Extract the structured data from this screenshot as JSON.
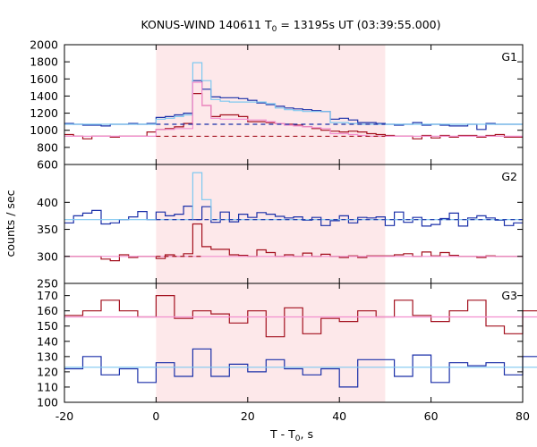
{
  "chart_data": {
    "type": "line",
    "title": "KONUS-WIND 140611 T",
    "title_sub": "0",
    "title_rest": " = 13195s UT (03:39:55.000)",
    "xlabel": "T - T",
    "xlabel_sub": "0",
    "xlabel_rest": ", s",
    "ylabel": "counts / sec",
    "xlim": [
      -20,
      80
    ],
    "xticks": [
      -20,
      0,
      20,
      40,
      60,
      80
    ],
    "shaded_interval": [
      0,
      50
    ],
    "colors": {
      "shade": "#fde8ea",
      "blue_data": "#1a2fa8",
      "blue_model": "#7ec8f0",
      "red_data": "#a3101e",
      "red_model": "#f28fd0"
    },
    "panels": [
      {
        "label": "G1",
        "ylim": [
          600,
          2000
        ],
        "yticks": [
          600,
          800,
          1000,
          1200,
          1400,
          1600,
          1800,
          2000
        ],
        "series": [
          {
            "color": "blue_data",
            "style": "step",
            "x0": -20,
            "dx": 2,
            "values": [
              1080,
              1070,
              1060,
              1060,
              1050,
              1070,
              1070,
              1080,
              1070,
              1080,
              1150,
              1160,
              1180,
              1200,
              1580,
              1480,
              1390,
              1380,
              1380,
              1370,
              1350,
              1320,
              1300,
              1280,
              1260,
              1250,
              1240,
              1230,
              1220,
              1130,
              1140,
              1120,
              1090,
              1090,
              1080,
              1070,
              1060,
              1070,
              1090,
              1060,
              1070,
              1060,
              1050,
              1050,
              1070,
              1010,
              1080,
              1070,
              1070,
              1070
            ]
          },
          {
            "color": "blue_model",
            "style": "step",
            "x0": -20,
            "dx": 2,
            "values": [
              1070,
              1070,
              1070,
              1070,
              1070,
              1070,
              1070,
              1070,
              1070,
              1070,
              1130,
              1140,
              1160,
              1180,
              1790,
              1580,
              1360,
              1340,
              1330,
              1330,
              1330,
              1330,
              1310,
              1260,
              1240,
              1230,
              1220,
              1220,
              1220,
              1090,
              1090,
              1080,
              1070,
              1070,
              1070,
              1070,
              1070,
              1070,
              1070,
              1070,
              1070,
              1070,
              1070,
              1070,
              1070,
              1070,
              1070,
              1070,
              1070,
              1070
            ]
          },
          {
            "color": "red_data",
            "style": "step",
            "x0": -20,
            "dx": 2,
            "values": [
              950,
              930,
              900,
              930,
              930,
              920,
              930,
              930,
              930,
              980,
              1010,
              1020,
              1040,
              1080,
              1430,
              1290,
              1160,
              1180,
              1180,
              1160,
              1100,
              1100,
              1090,
              1080,
              1070,
              1060,
              1040,
              1020,
              1000,
              990,
              980,
              990,
              980,
              960,
              950,
              940,
              930,
              930,
              900,
              940,
              910,
              940,
              920,
              940,
              940,
              920,
              940,
              950,
              920,
              920
            ]
          },
          {
            "color": "red_model",
            "style": "step",
            "x0": -20,
            "dx": 2,
            "values": [
              930,
              930,
              930,
              930,
              930,
              930,
              930,
              930,
              930,
              930,
              1010,
              1010,
              1020,
              1020,
              1560,
              1290,
              1140,
              1130,
              1130,
              1130,
              1120,
              1120,
              1100,
              1080,
              1060,
              1050,
              1040,
              1030,
              1020,
              960,
              960,
              950,
              940,
              930,
              930,
              930,
              930,
              930,
              930,
              930,
              930,
              930,
              930,
              930,
              930,
              930,
              930,
              930,
              930,
              930
            ]
          },
          {
            "color": "blue_data",
            "style": "dashed",
            "x": [
              0,
              50
            ],
            "values": [
              1070,
              1070
            ]
          },
          {
            "color": "red_data",
            "style": "dashed",
            "x": [
              0,
              50
            ],
            "values": [
              930,
              930
            ]
          }
        ]
      },
      {
        "label": "G2",
        "ylim": [
          250,
          470
        ],
        "yticks": [
          250,
          300,
          350,
          400
        ],
        "series": [
          {
            "color": "blue_data",
            "style": "step",
            "x0": -20,
            "dx": 2,
            "values": [
              362,
              375,
              380,
              385,
              360,
              362,
              368,
              373,
              383,
              368,
              382,
              375,
              378,
              393,
              368,
              392,
              363,
              382,
              364,
              378,
              372,
              381,
              378,
              374,
              371,
              373,
              367,
              372,
              357,
              366,
              375,
              362,
              372,
              371,
              373,
              357,
              382,
              363,
              372,
              356,
              359,
              370,
              380,
              356,
              371,
              375,
              371,
              367,
              357,
              362
            ]
          },
          {
            "color": "blue_model",
            "style": "step",
            "x0": -20,
            "dx": 2,
            "values": [
              368,
              368,
              368,
              368,
              368,
              368,
              368,
              368,
              368,
              368,
              368,
              368,
              368,
              368,
              455,
              405,
              368,
              368,
              368,
              368,
              368,
              368,
              368,
              368,
              368,
              368,
              368,
              368,
              368,
              368,
              368,
              368,
              368,
              368,
              368,
              368,
              368,
              368,
              368,
              368,
              368,
              368,
              368,
              368,
              368,
              368,
              368,
              368,
              368,
              368
            ]
          },
          {
            "color": "red_data",
            "style": "step",
            "x0": -20,
            "dx": 2,
            "values": [
              300,
              300,
              300,
              300,
              295,
              292,
              303,
              298,
              300,
              300,
              296,
              303,
              300,
              305,
              360,
              318,
              313,
              313,
              303,
              302,
              300,
              312,
              307,
              300,
              303,
              300,
              306,
              300,
              304,
              300,
              298,
              301,
              298,
              301,
              301,
              301,
              303,
              305,
              300,
              308,
              301,
              307,
              302,
              300,
              300,
              298,
              301,
              300,
              300,
              300
            ]
          },
          {
            "color": "red_model",
            "style": "step",
            "x0": -20,
            "dx": 2,
            "values": [
              300,
              300,
              300,
              300,
              300,
              300,
              300,
              300,
              300,
              300,
              300,
              300,
              300,
              300,
              300,
              300,
              300,
              300,
              300,
              300,
              300,
              300,
              300,
              300,
              300,
              300,
              300,
              300,
              300,
              300,
              300,
              300,
              300,
              300,
              300,
              300,
              300,
              300,
              300,
              300,
              300,
              300,
              300,
              300,
              300,
              300,
              300,
              300,
              300,
              300
            ]
          },
          {
            "color": "blue_data",
            "style": "dashed",
            "x": [
              0,
              80
            ],
            "values": [
              368,
              368
            ]
          },
          {
            "color": "red_data",
            "style": "dashed",
            "x": [
              0,
              10
            ],
            "values": [
              300,
              300
            ]
          }
        ]
      },
      {
        "label": "G3",
        "ylim": [
          100,
          178
        ],
        "yticks": [
          100,
          110,
          120,
          130,
          140,
          150,
          160,
          170
        ],
        "series": [
          {
            "color": "red_data",
            "style": "step",
            "x0": -20,
            "dx": 4,
            "values": [
              157,
              160,
              167,
              160,
              156,
              170,
              155,
              160,
              158,
              152,
              160,
              143,
              162,
              145,
              155,
              153,
              160,
              156,
              167,
              157,
              153,
              160,
              167,
              150,
              145,
              160,
              161,
              160,
              156,
              158
            ]
          },
          {
            "color": "red_model",
            "style": "step",
            "x0": -20,
            "dx": 4,
            "values": [
              156,
              156,
              156,
              156,
              156,
              156,
              156,
              156,
              156,
              156,
              156,
              156,
              156,
              156,
              156,
              156,
              156,
              156,
              156,
              156,
              156,
              156,
              156,
              156,
              156,
              156,
              156,
              156,
              156,
              156
            ]
          },
          {
            "color": "blue_data",
            "style": "step",
            "x0": -20,
            "dx": 4,
            "values": [
              122,
              130,
              118,
              122,
              113,
              126,
              117,
              135,
              117,
              125,
              120,
              128,
              122,
              118,
              122,
              110,
              128,
              128,
              117,
              131,
              113,
              126,
              124,
              126,
              118,
              130,
              115,
              122,
              115,
              117
            ]
          },
          {
            "color": "blue_model",
            "style": "step",
            "x0": -20,
            "dx": 4,
            "values": [
              123,
              123,
              123,
              123,
              123,
              123,
              123,
              123,
              123,
              123,
              123,
              123,
              123,
              123,
              123,
              123,
              123,
              123,
              123,
              123,
              123,
              123,
              123,
              123,
              123,
              123,
              123,
              123,
              123,
              123
            ]
          }
        ]
      }
    ]
  }
}
